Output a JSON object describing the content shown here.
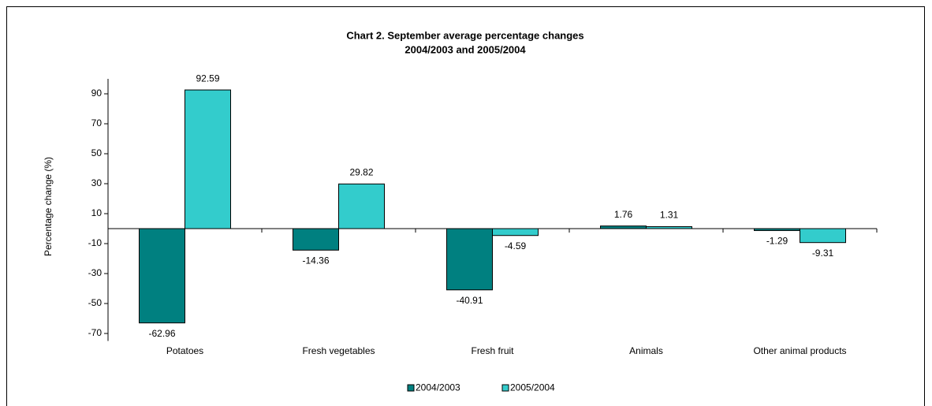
{
  "chart_data": {
    "type": "bar",
    "title": [
      "Chart 2.  September average percentage changes",
      "2004/2003 and 2005/2004"
    ],
    "y_label": "Percentage change (%)",
    "categories": [
      "Potatoes",
      "Fresh vegetables",
      "Fresh fruit",
      "Animals",
      "Other animal products"
    ],
    "series": [
      {
        "name": "2004/2003",
        "color": "#008080",
        "values": [
          -62.96,
          -14.36,
          -40.91,
          1.76,
          -1.29
        ]
      },
      {
        "name": "2005/2004",
        "color": "#33cccc",
        "values": [
          92.59,
          29.82,
          -4.59,
          1.31,
          -9.31
        ]
      }
    ],
    "ylim": [
      -75,
      100
    ],
    "yticks": [
      -70,
      -50,
      -30,
      -10,
      10,
      30,
      50,
      70,
      90
    ],
    "legend": "bottom"
  }
}
